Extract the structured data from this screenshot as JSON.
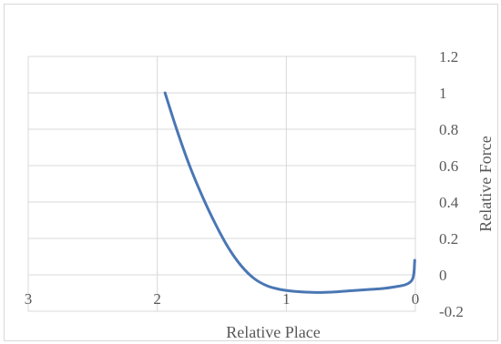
{
  "chart_data": {
    "type": "line",
    "xlabel": "Relative Place",
    "ylabel": "Relative Force",
    "x_reversed": true,
    "y_axis_position": "right",
    "xlim": [
      0,
      3
    ],
    "ylim": [
      -0.2,
      1.2
    ],
    "x_ticks": [
      "3",
      "2",
      "1",
      "0"
    ],
    "x_tick_values": [
      3,
      2,
      1,
      0
    ],
    "y_ticks": [
      "1.2",
      "1",
      "0.8",
      "0.6",
      "0.4",
      "0.2",
      "0",
      "-0.2"
    ],
    "y_tick_values": [
      1.2,
      1,
      0.8,
      0.6,
      0.4,
      0.2,
      0,
      -0.2
    ],
    "grid": true,
    "line_color": "#4a77b4",
    "series": [
      {
        "x": [
          1.94,
          1.85,
          1.75,
          1.65,
          1.55,
          1.45,
          1.35,
          1.25,
          1.15,
          1.05,
          0.95,
          0.85,
          0.75,
          0.65,
          0.55,
          0.45,
          0.35,
          0.25,
          0.15,
          0.08,
          0.04,
          0.02,
          0.01,
          0.005
        ],
        "y": [
          1.0,
          0.8,
          0.6,
          0.43,
          0.28,
          0.15,
          0.05,
          -0.02,
          -0.06,
          -0.08,
          -0.09,
          -0.095,
          -0.097,
          -0.095,
          -0.09,
          -0.085,
          -0.08,
          -0.075,
          -0.065,
          -0.055,
          -0.04,
          -0.02,
          0.02,
          0.08
        ]
      }
    ]
  }
}
